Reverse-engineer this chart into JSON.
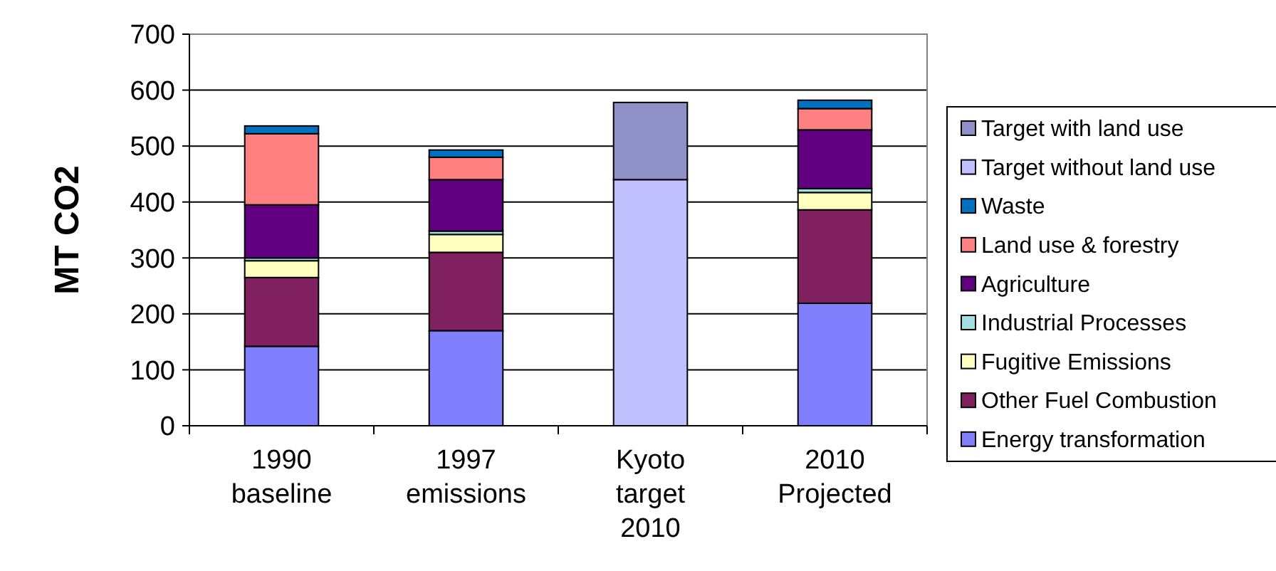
{
  "chart_data": {
    "type": "bar",
    "ylabel": "MT CO2",
    "categories": [
      "1990\nbaseline",
      "1997\nemissions",
      "Kyoto\ntarget\n2010",
      "2010\nProjected"
    ],
    "stacked": true,
    "ylim": [
      0,
      700
    ],
    "yticks": [
      0,
      100,
      200,
      300,
      400,
      500,
      600,
      700
    ],
    "grid": "y",
    "legend": "right",
    "series": [
      {
        "name": "Energy transformation",
        "color": "#8080ff",
        "values": [
          142,
          170,
          null,
          219
        ]
      },
      {
        "name": "Other Fuel Combustion",
        "color": "#802060",
        "values": [
          123,
          140,
          null,
          167
        ]
      },
      {
        "name": "Fugitive Emissions",
        "color": "#ffffc0",
        "values": [
          30,
          32,
          null,
          31
        ]
      },
      {
        "name": "Industrial Processes",
        "color": "#a0e0e0",
        "values": [
          5,
          6,
          null,
          7
        ]
      },
      {
        "name": "Agriculture",
        "color": "#600080",
        "values": [
          95,
          92,
          null,
          105
        ]
      },
      {
        "name": "Land use & forestry",
        "color": "#ff8080",
        "values": [
          127,
          40,
          null,
          38
        ]
      },
      {
        "name": "Waste",
        "color": "#0070c0",
        "values": [
          14,
          13,
          null,
          15
        ]
      },
      {
        "name": "Target without land use",
        "color": "#c0c0ff",
        "values": [
          null,
          null,
          440,
          null
        ]
      },
      {
        "name": "Target with land use",
        "color": "#9090c8",
        "values": [
          null,
          null,
          138,
          null
        ]
      }
    ]
  }
}
